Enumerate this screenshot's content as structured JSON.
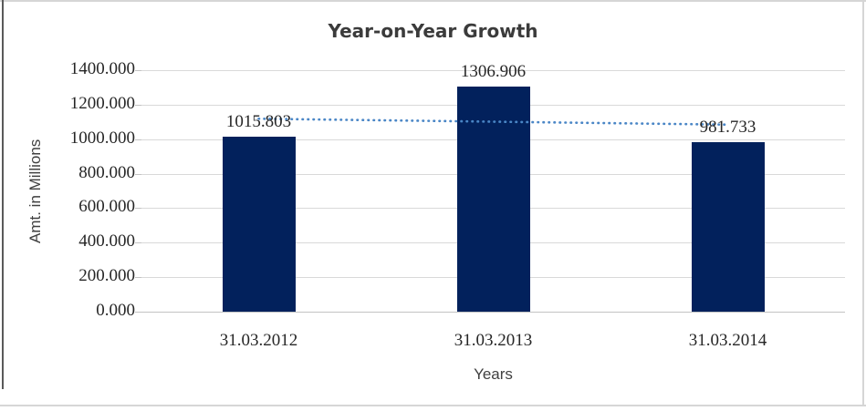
{
  "chart_data": {
    "type": "bar",
    "title": "Year-on-Year Growth",
    "xlabel": "Years",
    "ylabel": "Amt. in Millions",
    "categories": [
      "31.03.2012",
      "31.03.2013",
      "31.03.2014"
    ],
    "values": [
      1015.803,
      1306.906,
      981.733
    ],
    "data_labels": [
      "1015.803",
      "1306.906",
      "981.733"
    ],
    "ylim": [
      0,
      1400
    ],
    "ytick_step": 200,
    "ytick_labels": [
      "0.000",
      "200.000",
      "400.000",
      "600.000",
      "800.000",
      "1000.000",
      "1200.000",
      "1400.000"
    ],
    "grid": true,
    "legend": "none",
    "trendline": {
      "type": "linear",
      "style": "dotted",
      "value_at_first_category": 1118.5,
      "value_at_last_category": 1084.4
    },
    "colors": {
      "bar": "#02215c",
      "trendline": "#4a86c6",
      "gridline": "#d9d9d9",
      "axis_line": "#c3c3c3",
      "text": "#262626",
      "title_text": "#3b3b3b",
      "axis_title_text": "#404040"
    }
  }
}
